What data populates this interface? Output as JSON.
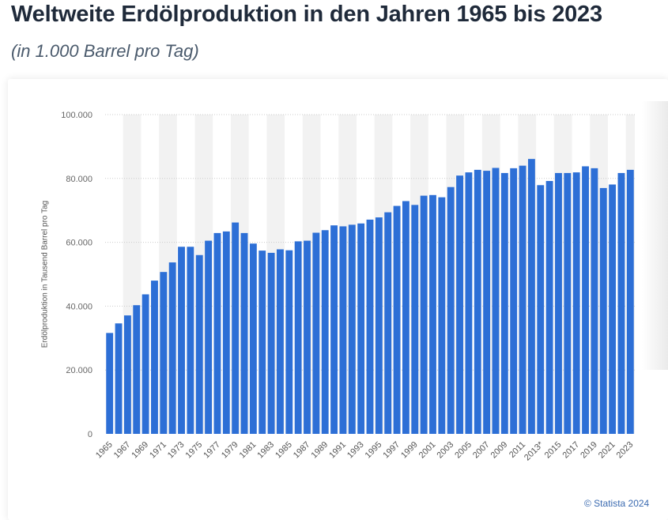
{
  "title": "Weltweite Erdölproduktion in den Jahren 1965 bis 2023",
  "subtitle": "(in 1.000 Barrel pro Tag)",
  "copyright": "© Statista 2024",
  "colors": {
    "bar": "#2d6fd6",
    "band": "#f2f2f2",
    "grid": "#cccccc",
    "title": "#1f2a3a"
  },
  "chart_data": {
    "type": "bar",
    "ylabel": "Erdölproduktion in Tausend Barrel pro Tag",
    "ylim": [
      0,
      100000
    ],
    "yticks": [
      "0",
      "20.000",
      "40.000",
      "60.000",
      "80.000",
      "100.000"
    ],
    "grid": true,
    "categories": [
      "1965",
      "1966",
      "1967",
      "1968",
      "1969",
      "1970",
      "1971",
      "1972",
      "1973",
      "1974",
      "1975",
      "1976",
      "1977",
      "1978",
      "1979",
      "1980",
      "1981",
      "1982",
      "1983",
      "1984",
      "1985",
      "1986",
      "1987",
      "1988",
      "1989",
      "1990",
      "1991",
      "1992",
      "1993",
      "1994",
      "1995",
      "1996",
      "1997",
      "1998",
      "1999",
      "2000",
      "2001",
      "2002",
      "2003",
      "2004",
      "2005",
      "2006",
      "2007",
      "2008",
      "2009",
      "2010",
      "2011",
      "2012",
      "2013*",
      "2014",
      "2015",
      "2016",
      "2017",
      "2018",
      "2019",
      "2020",
      "2021",
      "2022",
      "2023"
    ],
    "values": [
      31600,
      34600,
      37100,
      40300,
      43700,
      48000,
      50700,
      53700,
      58600,
      58600,
      56000,
      60500,
      62900,
      63400,
      66200,
      62900,
      59600,
      57400,
      56700,
      57800,
      57500,
      60300,
      60500,
      63000,
      63800,
      65300,
      65000,
      65500,
      65900,
      67100,
      67800,
      69400,
      71400,
      72900,
      71700,
      74600,
      74800,
      74100,
      77300,
      80900,
      81900,
      82700,
      82400,
      83300,
      81700,
      83200,
      84000,
      86100,
      77900,
      79200,
      81700,
      81700,
      81900,
      83800,
      83200,
      77000,
      78100,
      81700,
      82700
    ],
    "tick_labels": [
      "1965",
      "1967",
      "1969",
      "1971",
      "1973",
      "1975",
      "1977",
      "1979",
      "1981",
      "1983",
      "1985",
      "1987",
      "1989",
      "1991",
      "1993",
      "1995",
      "1997",
      "1999",
      "2001",
      "2003",
      "2005",
      "2007",
      "2009",
      "2011",
      "2013*",
      "2015",
      "2017",
      "2019",
      "2021",
      "2023"
    ]
  }
}
